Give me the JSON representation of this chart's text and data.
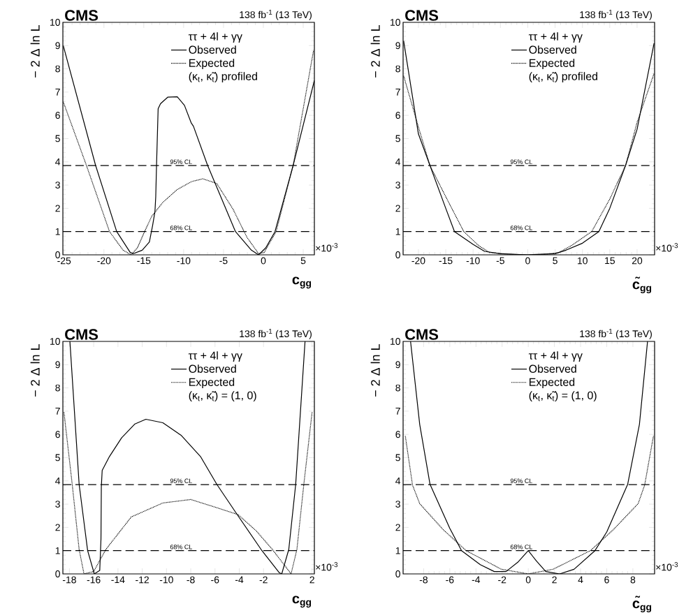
{
  "chart_data": [
    {
      "type": "line",
      "title": "CMS",
      "subtitle": "138 fb$^{-1}$ (13 TeV)",
      "xlabel": "c$_{gg}$",
      "ylabel": "− 2 Δ ln L",
      "legend_title": "ττ + 4l + γγ",
      "legend": "top right",
      "annotations": [
        "(κ$_{t}$, κ̃$_{t}$) profiled",
        "×10$^{-3}$"
      ],
      "xlim": [
        -25.15,
        6.4
      ],
      "ylim": [
        0,
        10
      ],
      "xticks": [
        -25,
        -20,
        -15,
        -10,
        -5,
        0,
        5
      ],
      "yticks": [
        0,
        1,
        2,
        3,
        4,
        5,
        6,
        7,
        8,
        9,
        10
      ],
      "ref_lines": [
        {
          "axis": "y",
          "value": 1,
          "label": "68% CL",
          "color": "#000000",
          "line_style": "dashed"
        },
        {
          "axis": "y",
          "value": 3.84,
          "label": "95% CL",
          "color": "#000000",
          "line_style": "dashed"
        }
      ],
      "series": [
        {
          "name": "Observed",
          "color": "#000000",
          "line_style": "solid",
          "x": [
            -25.1,
            -21.05,
            -18.4,
            -16.7,
            -16.3,
            -15.2,
            -14.3,
            -13.9,
            -13.6,
            -13.5,
            -13.4,
            -13.2,
            -12.9,
            -12.0,
            -10.8,
            -9.9,
            -9.06,
            -8.77,
            -7.0,
            -3.5,
            -1.5,
            -0.6,
            0.3,
            1.46,
            3.74,
            6.4
          ],
          "values": [
            9.0,
            3.85,
            1.0,
            0.1,
            0.05,
            0.2,
            0.55,
            1.25,
            1.86,
            2.5,
            3.87,
            6.28,
            6.5,
            6.78,
            6.8,
            6.43,
            5.68,
            5.53,
            3.85,
            1.0,
            0.2,
            0.0,
            0.3,
            1.0,
            3.85,
            7.5
          ]
        },
        {
          "name": "Expected",
          "color": "#000000",
          "line_style": "dotted",
          "x": [
            -25.1,
            -22.2,
            -19.3,
            -17.6,
            -16.6,
            -15.8,
            -14.9,
            -14.0,
            -12.6,
            -10.8,
            -9.0,
            -7.6,
            -5.85,
            -3.8,
            -2.05,
            -0.6,
            0.1,
            1.6,
            3.74,
            6.3
          ],
          "values": [
            6.58,
            3.85,
            1.0,
            0.2,
            0.0,
            0.3,
            1.0,
            1.66,
            2.26,
            2.81,
            3.15,
            3.27,
            3.07,
            1.96,
            0.75,
            0.05,
            0.1,
            1.0,
            3.85,
            8.8
          ]
        }
      ]
    },
    {
      "type": "line",
      "title": "CMS",
      "subtitle": "138 fb$^{-1}$ (13 TeV)",
      "xlabel": "c̃$_{gg}$",
      "ylabel": "− 2 Δ ln L",
      "legend_title": "ττ + 4l + γγ",
      "legend": "top right",
      "annotations": [
        "(κ$_{t}$, κ̃$_{t}$) profiled",
        "×10$^{-3}$"
      ],
      "xlim": [
        -22.8,
        23.2
      ],
      "ylim": [
        0,
        10
      ],
      "xticks": [
        -20,
        -15,
        -10,
        -5,
        0,
        5,
        10,
        15,
        20
      ],
      "yticks": [
        0,
        1,
        2,
        3,
        4,
        5,
        6,
        7,
        8,
        9,
        10
      ],
      "ref_lines": [
        {
          "axis": "y",
          "value": 1,
          "label": "68% CL",
          "color": "#000000",
          "line_style": "dashed"
        },
        {
          "axis": "y",
          "value": 3.84,
          "label": "95% CL",
          "color": "#000000",
          "line_style": "dashed"
        }
      ],
      "series": [
        {
          "name": "Observed",
          "color": "#000000",
          "line_style": "solid",
          "x": [
            -22.7,
            -20,
            -17.9,
            -15,
            -13.4,
            -10,
            -7.9,
            -5,
            0,
            5,
            7.0,
            10,
            13.0,
            15,
            17.9,
            20,
            23.1
          ],
          "values": [
            9.2,
            5.2,
            3.85,
            2.0,
            1.0,
            0.45,
            0.15,
            0.05,
            0.0,
            0.05,
            0.2,
            0.5,
            1.0,
            2.0,
            3.85,
            5.4,
            9.1
          ]
        },
        {
          "name": "Expected",
          "color": "#000000",
          "line_style": "dotted",
          "x": [
            -22.7,
            -20,
            -17.9,
            -15,
            -11.7,
            -9,
            -7,
            -3,
            0,
            3,
            5.7,
            8,
            11.7,
            15,
            17.9,
            20,
            23.1
          ],
          "values": [
            7.7,
            5.5,
            3.85,
            2.5,
            1.0,
            0.4,
            0.1,
            0.02,
            0.0,
            0.02,
            0.1,
            0.4,
            1.0,
            2.4,
            3.85,
            5.7,
            7.8
          ]
        }
      ]
    },
    {
      "type": "line",
      "title": "CMS",
      "subtitle": "138 fb$^{-1}$ (13 TeV)",
      "xlabel": "c$_{gg}$",
      "ylabel": "− 2 Δ ln L",
      "legend_title": "ττ + 4l + γγ",
      "legend": "top right",
      "annotations": [
        "(κ$_{t}$, κ̃$_{t}$) = (1, 0)",
        "×10$^{-3}$"
      ],
      "xlim": [
        -18.54,
        2.19
      ],
      "ylim": [
        0,
        10
      ],
      "xticks": [
        -18,
        -16,
        -14,
        -12,
        -10,
        -8,
        -6,
        -4,
        -2,
        2
      ],
      "yticks": [
        0,
        1,
        2,
        3,
        4,
        5,
        6,
        7,
        8,
        9,
        10
      ],
      "ref_lines": [
        {
          "axis": "y",
          "value": 1,
          "label": "68% CL",
          "color": "#000000",
          "line_style": "dashed"
        },
        {
          "axis": "y",
          "value": 3.84,
          "label": "95% CL",
          "color": "#000000",
          "line_style": "dashed"
        }
      ],
      "series": [
        {
          "name": "Observed",
          "color": "#000000",
          "line_style": "solid",
          "x": [
            -17.96,
            -17.2,
            -16.5,
            -15.95,
            -15.5,
            -15.4,
            -15.37,
            -15.3,
            -14.7,
            -13.7,
            -12.6,
            -11.7,
            -10.3,
            -8.77,
            -7.2,
            -5.85,
            -4.3,
            -2.2,
            -0.7,
            -0.5,
            0.08,
            0.65,
            1.42
          ],
          "values": [
            10,
            3.85,
            1.0,
            0.0,
            0.15,
            1.5,
            3.75,
            4.45,
            5.05,
            5.85,
            6.45,
            6.65,
            6.5,
            5.95,
            5.05,
            3.85,
            2.65,
            1.05,
            0.05,
            0.0,
            1.05,
            3.85,
            10
          ]
        },
        {
          "name": "Expected",
          "color": "#000000",
          "line_style": "dotted",
          "x": [
            -18.45,
            -17.77,
            -17.2,
            -16.8,
            -16.0,
            -15.0,
            -12.9,
            -10.3,
            -8.0,
            -5.87,
            -4.1,
            -2.6,
            -1.27,
            0.27,
            0.75,
            1.32,
            2.0
          ],
          "values": [
            6.95,
            3.85,
            1.05,
            0.0,
            0.1,
            1.05,
            2.45,
            3.05,
            3.2,
            2.85,
            2.55,
            1.85,
            1.05,
            0.0,
            1.05,
            3.85,
            6.95
          ]
        }
      ]
    },
    {
      "type": "line",
      "title": "CMS",
      "subtitle": "138 fb$^{-1}$ (13 TeV)",
      "xlabel": "c̃$_{gg}$",
      "ylabel": "− 2 Δ ln L",
      "legend_title": "ττ + 4l + γγ",
      "legend": "top right",
      "annotations": [
        "(κ$_{t}$, κ̃$_{t}$) = (1, 0)",
        "×10$^{-3}$"
      ],
      "xlim": [
        -9.57,
        9.66
      ],
      "ylim": [
        0,
        10
      ],
      "xticks": [
        -8,
        -6,
        -4,
        -2,
        0,
        2,
        4,
        6,
        8
      ],
      "yticks": [
        0,
        1,
        2,
        3,
        4,
        5,
        6,
        7,
        8,
        9,
        10
      ],
      "ref_lines": [
        {
          "axis": "y",
          "value": 1,
          "label": "68% CL",
          "color": "#000000",
          "line_style": "dashed"
        },
        {
          "axis": "y",
          "value": 3.84,
          "label": "95% CL",
          "color": "#000000",
          "line_style": "dashed"
        }
      ],
      "series": [
        {
          "name": "Observed",
          "color": "#000000",
          "line_style": "solid",
          "x": [
            -9.0,
            -8.3,
            -7.51,
            -6.0,
            -5.1,
            -3.67,
            -2.6,
            -1.7,
            -0.8,
            0,
            0.63,
            1.34,
            2.4,
            3.5,
            5.1,
            6.0,
            7.6,
            8.5,
            9.12
          ],
          "values": [
            10,
            6.43,
            3.85,
            1.96,
            1.0,
            0.4,
            0.1,
            0.1,
            0.5,
            1.0,
            0.55,
            0.1,
            0.0,
            0.2,
            1.0,
            1.8,
            3.85,
            6.43,
            10
          ]
        },
        {
          "name": "Expected",
          "color": "#000000",
          "line_style": "dotted",
          "x": [
            -9.4,
            -8.85,
            -8.3,
            -6.5,
            -4.75,
            -2.06,
            0,
            1.9,
            4.75,
            6.5,
            8.4,
            8.9,
            9.57
          ],
          "values": [
            5.93,
            3.82,
            3.02,
            1.9,
            1.0,
            0.2,
            0.0,
            0.2,
            1.0,
            1.9,
            3.02,
            3.82,
            5.93
          ]
        }
      ]
    }
  ]
}
